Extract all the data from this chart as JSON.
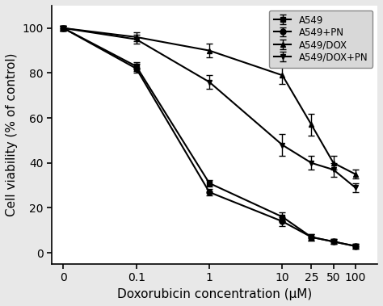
{
  "x_values": [
    0.01,
    0.1,
    1,
    10,
    25,
    50,
    100
  ],
  "x_tick_positions": [
    0.01,
    0.1,
    1,
    10,
    25,
    50,
    100
  ],
  "x_labels": [
    "0",
    "0.1",
    "1",
    "10",
    "25",
    "50",
    "100"
  ],
  "series": [
    {
      "label": "A549",
      "marker": "s",
      "y": [
        100,
        83,
        31,
        16,
        7,
        5,
        3
      ],
      "yerr": [
        1,
        2,
        1.5,
        2,
        1.5,
        1,
        1
      ]
    },
    {
      "label": "A549+PN",
      "marker": "o",
      "y": [
        100,
        82,
        27,
        14,
        7,
        5,
        3
      ],
      "yerr": [
        1,
        2,
        1.5,
        2,
        1.5,
        1,
        1
      ]
    },
    {
      "label": "A549/DOX",
      "marker": "^",
      "y": [
        100,
        96,
        90,
        79,
        57,
        40,
        35
      ],
      "yerr": [
        1,
        2,
        3,
        4,
        5,
        3,
        2
      ]
    },
    {
      "label": "A549/DOX+PN",
      "marker": "v",
      "y": [
        100,
        95,
        76,
        48,
        40,
        37,
        29
      ],
      "yerr": [
        1,
        2,
        3,
        5,
        3,
        3,
        2
      ]
    }
  ],
  "xlabel": "Doxorubicin concentration (μM)",
  "ylabel": "Cell viability (% of control)",
  "ylim": [
    -5,
    110
  ],
  "yticks": [
    0,
    20,
    40,
    60,
    80,
    100
  ],
  "color": "black",
  "linewidth": 1.5,
  "markersize": 5,
  "legend_loc": "upper right",
  "fig_facecolor": "#e8e8e8",
  "legend_facecolor": "#d8d8d8"
}
